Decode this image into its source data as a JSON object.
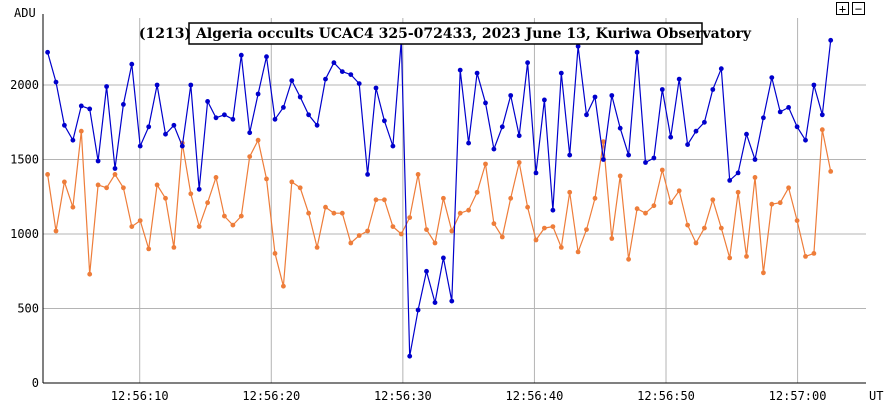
{
  "controls": {
    "zoom_in_label": "+",
    "zoom_out_label": "−"
  },
  "chart_data": {
    "type": "line",
    "title": "(1213) Algeria occults UCAC4 325-072433, 2023 June 13, Kuriwa Observatory",
    "ylabel": "ADU",
    "xlabel": "UT",
    "ylim": [
      0,
      2450
    ],
    "yticks": [
      0,
      500,
      1000,
      1500,
      2000
    ],
    "xticks": [
      {
        "t": 10,
        "label": "12:56:10"
      },
      {
        "t": 20,
        "label": "12:56:20"
      },
      {
        "t": 30,
        "label": "12:56:30"
      },
      {
        "t": 40,
        "label": "12:56:40"
      },
      {
        "t": 50,
        "label": "12:56:50"
      },
      {
        "t": 60,
        "label": "12:57:00"
      }
    ],
    "xlim_seconds_after_12_56_00": [
      2.65,
      65.2
    ],
    "grid": true,
    "series": [
      {
        "color": "#0000cc",
        "x_start_seconds_after_12_56_00": 3.0,
        "x_step_seconds": 0.64,
        "values": [
          2220,
          2020,
          1730,
          1630,
          1860,
          1840,
          1490,
          1990,
          1440,
          1870,
          2140,
          1590,
          1720,
          2000,
          1670,
          1730,
          1590,
          2000,
          1300,
          1890,
          1780,
          1800,
          1770,
          2200,
          1680,
          1940,
          2190,
          1770,
          1850,
          2030,
          1920,
          1800,
          1730,
          2040,
          2150,
          2090,
          2070,
          2010,
          1400,
          1980,
          1760,
          1590,
          2300,
          180,
          490,
          750,
          540,
          840,
          550,
          2100,
          1610,
          2080,
          1880,
          1570,
          1720,
          1930,
          1660,
          2150,
          1410,
          1900,
          1160,
          2080,
          1530,
          2260,
          1800,
          1920,
          1500,
          1930,
          1710,
          1530,
          2220,
          1480,
          1510,
          1970,
          1650,
          2040,
          1600,
          1690,
          1750,
          1970,
          2110,
          1360,
          1410,
          1670,
          1500,
          1780,
          2050,
          1820,
          1850,
          1720,
          1630,
          2000,
          1800,
          2300
        ]
      },
      {
        "color": "#ee7d3a",
        "x_start_seconds_after_12_56_00": 3.0,
        "x_step_seconds": 0.64,
        "values": [
          1400,
          1020,
          1350,
          1180,
          1690,
          730,
          1330,
          1310,
          1400,
          1310,
          1050,
          1090,
          900,
          1330,
          1240,
          910,
          1610,
          1270,
          1050,
          1210,
          1380,
          1120,
          1060,
          1120,
          1520,
          1630,
          1370,
          870,
          650,
          1350,
          1310,
          1140,
          910,
          1180,
          1140,
          1140,
          940,
          990,
          1020,
          1230,
          1230,
          1050,
          1000,
          1110,
          1400,
          1030,
          940,
          1240,
          1020,
          1140,
          1160,
          1280,
          1470,
          1070,
          980,
          1240,
          1480,
          1180,
          960,
          1040,
          1050,
          910,
          1280,
          880,
          1030,
          1240,
          1620,
          970,
          1390,
          830,
          1170,
          1140,
          1190,
          1430,
          1210,
          1290,
          1060,
          940,
          1040,
          1230,
          1040,
          840,
          1280,
          850,
          1380,
          740,
          1200,
          1210,
          1310,
          1090,
          850,
          870,
          1700,
          1420
        ]
      }
    ]
  }
}
